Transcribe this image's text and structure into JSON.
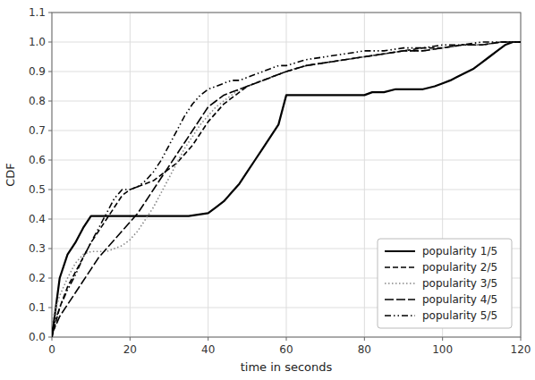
{
  "chart_data": {
    "type": "line",
    "xlabel": "time in seconds",
    "ylabel": "CDF",
    "xlim": [
      0,
      120
    ],
    "ylim": [
      0,
      1.1
    ],
    "xticks": [
      0,
      20,
      40,
      60,
      80,
      100,
      120
    ],
    "yticks": [
      {
        "value": 0,
        "label": "0.0"
      },
      0.1,
      0.2,
      0.3,
      0.4,
      0.5,
      0.6,
      0.7,
      0.8,
      0.9,
      {
        "value": 1.0,
        "label": "1.0"
      },
      1.1
    ],
    "grid": true,
    "legend": "lower right",
    "series": [
      {
        "name": "popularity 1/5",
        "color": "#000000",
        "line_style": "solid",
        "x": [
          0,
          1,
          2,
          4,
          6,
          8,
          10,
          12,
          14,
          16,
          18,
          20,
          25,
          30,
          35,
          40,
          42,
          44,
          46,
          48,
          50,
          52,
          54,
          56,
          58,
          60,
          62,
          65,
          68,
          70,
          72,
          75,
          78,
          80,
          82,
          85,
          88,
          90,
          92,
          95,
          98,
          100,
          102,
          105,
          108,
          110,
          112,
          114,
          116,
          118,
          120
        ],
        "values": [
          0.0,
          0.1,
          0.2,
          0.28,
          0.32,
          0.37,
          0.41,
          0.41,
          0.41,
          0.41,
          0.41,
          0.41,
          0.41,
          0.41,
          0.41,
          0.42,
          0.44,
          0.46,
          0.49,
          0.52,
          0.56,
          0.6,
          0.64,
          0.68,
          0.72,
          0.82,
          0.82,
          0.82,
          0.82,
          0.82,
          0.82,
          0.82,
          0.82,
          0.82,
          0.83,
          0.83,
          0.84,
          0.84,
          0.84,
          0.84,
          0.85,
          0.86,
          0.87,
          0.89,
          0.91,
          0.93,
          0.95,
          0.97,
          0.99,
          1.0,
          1.0
        ]
      },
      {
        "name": "popularity 2/5",
        "color": "#000000",
        "line_style": "dashed",
        "x": [
          0,
          1,
          2,
          4,
          6,
          8,
          10,
          12,
          14,
          16,
          18,
          20,
          22,
          24,
          26,
          28,
          30,
          32,
          34,
          36,
          38,
          40,
          42,
          44,
          46,
          48,
          50,
          52,
          54,
          56,
          58,
          60,
          65,
          70,
          75,
          80,
          85,
          90,
          95,
          100,
          105,
          110,
          115,
          120
        ],
        "values": [
          0.0,
          0.05,
          0.1,
          0.17,
          0.22,
          0.27,
          0.32,
          0.36,
          0.4,
          0.44,
          0.48,
          0.5,
          0.51,
          0.52,
          0.53,
          0.55,
          0.57,
          0.59,
          0.62,
          0.65,
          0.69,
          0.73,
          0.76,
          0.79,
          0.81,
          0.83,
          0.85,
          0.86,
          0.87,
          0.88,
          0.89,
          0.9,
          0.92,
          0.93,
          0.94,
          0.95,
          0.96,
          0.97,
          0.98,
          0.98,
          0.99,
          0.99,
          1.0,
          1.0
        ]
      },
      {
        "name": "popularity 3/5",
        "color": "#888888",
        "line_style": "dotted",
        "x": [
          0,
          1,
          2,
          4,
          6,
          8,
          10,
          12,
          14,
          16,
          18,
          20,
          22,
          24,
          26,
          28,
          30,
          32,
          34,
          36,
          38,
          40,
          42,
          44,
          46,
          48,
          50,
          52,
          54,
          56,
          58,
          60,
          65,
          70,
          75,
          80,
          85,
          90,
          95,
          100,
          105,
          110,
          115,
          120
        ],
        "values": [
          0.05,
          0.1,
          0.14,
          0.2,
          0.25,
          0.28,
          0.29,
          0.29,
          0.29,
          0.3,
          0.31,
          0.33,
          0.36,
          0.4,
          0.44,
          0.49,
          0.54,
          0.59,
          0.64,
          0.68,
          0.72,
          0.75,
          0.78,
          0.8,
          0.82,
          0.84,
          0.85,
          0.86,
          0.87,
          0.88,
          0.89,
          0.9,
          0.92,
          0.93,
          0.94,
          0.95,
          0.96,
          0.97,
          0.97,
          0.98,
          0.99,
          0.99,
          1.0,
          1.0
        ]
      },
      {
        "name": "popularity 4/5",
        "color": "#000000",
        "line_style": "longdashed",
        "x": [
          0,
          1,
          2,
          4,
          6,
          8,
          10,
          12,
          14,
          16,
          18,
          20,
          22,
          24,
          26,
          28,
          30,
          32,
          34,
          36,
          38,
          40,
          42,
          44,
          46,
          48,
          50,
          52,
          54,
          56,
          58,
          60,
          65,
          70,
          75,
          80,
          85,
          90,
          95,
          100,
          105,
          110,
          115,
          120
        ],
        "values": [
          0.01,
          0.04,
          0.07,
          0.11,
          0.15,
          0.19,
          0.23,
          0.27,
          0.3,
          0.33,
          0.36,
          0.39,
          0.42,
          0.46,
          0.5,
          0.54,
          0.58,
          0.62,
          0.66,
          0.7,
          0.74,
          0.78,
          0.8,
          0.82,
          0.83,
          0.84,
          0.85,
          0.86,
          0.87,
          0.88,
          0.89,
          0.9,
          0.92,
          0.93,
          0.94,
          0.95,
          0.96,
          0.97,
          0.97,
          0.98,
          0.99,
          0.99,
          1.0,
          1.0
        ]
      },
      {
        "name": "popularity 5/5",
        "color": "#000000",
        "line_style": "dashdotdot",
        "x": [
          0,
          1,
          2,
          4,
          6,
          8,
          10,
          12,
          14,
          16,
          18,
          20,
          22,
          24,
          26,
          28,
          30,
          32,
          34,
          36,
          38,
          40,
          42,
          44,
          46,
          48,
          50,
          52,
          54,
          56,
          58,
          60,
          65,
          70,
          75,
          80,
          85,
          90,
          95,
          100,
          105,
          110,
          115,
          120
        ],
        "values": [
          0.02,
          0.06,
          0.1,
          0.16,
          0.21,
          0.27,
          0.32,
          0.37,
          0.42,
          0.47,
          0.5,
          0.5,
          0.51,
          0.53,
          0.56,
          0.6,
          0.65,
          0.7,
          0.75,
          0.79,
          0.82,
          0.84,
          0.85,
          0.86,
          0.87,
          0.87,
          0.88,
          0.89,
          0.9,
          0.91,
          0.92,
          0.92,
          0.94,
          0.95,
          0.96,
          0.97,
          0.97,
          0.98,
          0.98,
          0.99,
          0.99,
          1.0,
          1.0,
          1.0
        ]
      }
    ]
  }
}
